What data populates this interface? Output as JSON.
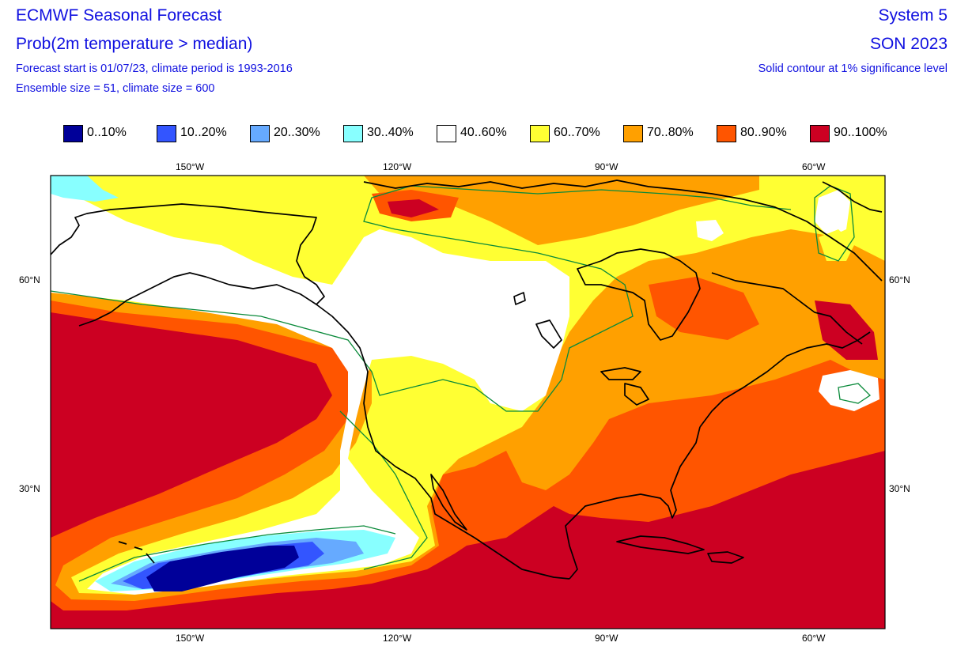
{
  "header": {
    "title": "ECMWF Seasonal Forecast",
    "subtitle": "Prob(2m temperature > median)",
    "line3": "Forecast start is 01/07/23, climate period is 1993-2016",
    "line4": "Ensemble size = 51, climate size = 600",
    "system": "System 5",
    "season": "SON 2023",
    "note": "Solid contour at 1% significance level"
  },
  "legend": [
    {
      "label": "0..10%",
      "color": "#000099"
    },
    {
      "label": "10..20%",
      "color": "#3355ff"
    },
    {
      "label": "20..30%",
      "color": "#66aaff"
    },
    {
      "label": "30..40%",
      "color": "#88ffff"
    },
    {
      "label": "40..60%",
      "color": "#ffffff"
    },
    {
      "label": "60..70%",
      "color": "#ffff33"
    },
    {
      "label": "70..80%",
      "color": "#ffa000"
    },
    {
      "label": "80..90%",
      "color": "#ff5500"
    },
    {
      "label": "90..100%",
      "color": "#cc0022"
    }
  ],
  "axes": {
    "lon_ticks": [
      "150°W",
      "120°W",
      "90°W",
      "60°W"
    ],
    "lat_ticks": [
      "60°N",
      "30°N"
    ]
  }
}
